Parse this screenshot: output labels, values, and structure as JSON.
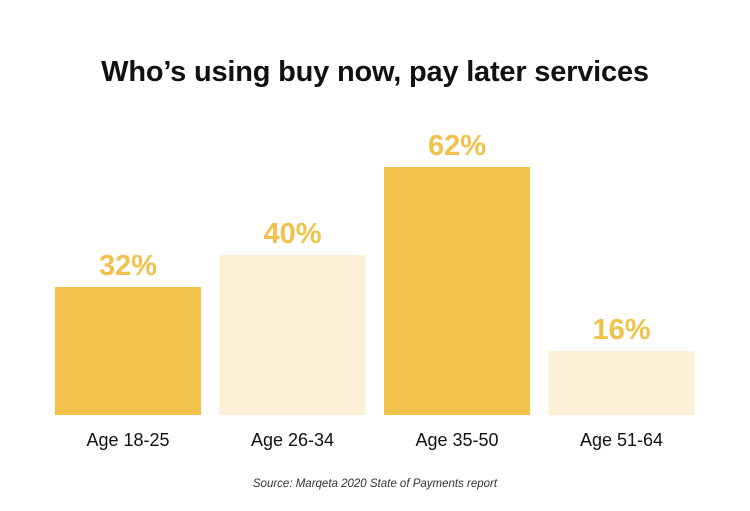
{
  "chart_data": {
    "type": "bar",
    "title": "Who’s using buy now, pay later services",
    "categories": [
      "Age 18-25",
      "Age 26-34",
      "Age 35-50",
      "Age 51-64"
    ],
    "values": [
      32,
      40,
      62,
      16
    ],
    "value_labels": [
      "32%",
      "40%",
      "62%",
      "16%"
    ],
    "unit": "%",
    "xlabel": "",
    "ylabel": "",
    "ylim": [
      0,
      62
    ],
    "grid": false,
    "legend": "none",
    "bar_colors": [
      "#F0C14B",
      "#FBEFD6",
      "#F0C14B",
      "#FBEFD6"
    ],
    "label_color": "#F0C14B",
    "source": "Source: Marqeta 2020 State of Payments report"
  }
}
